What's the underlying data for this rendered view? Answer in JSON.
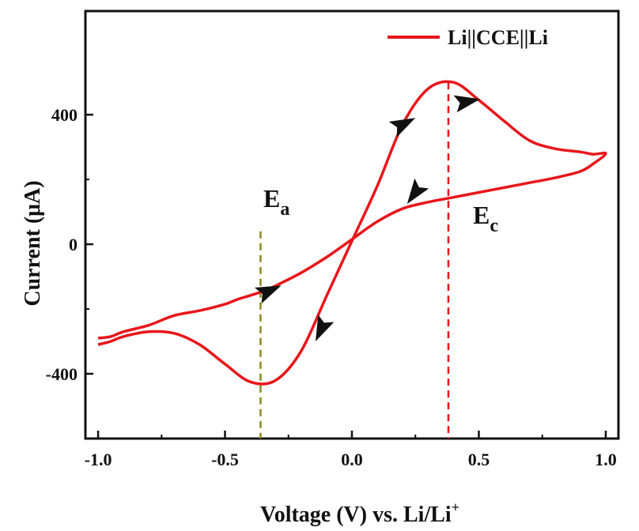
{
  "chart_data": {
    "type": "line",
    "xlabel": "Voltage (V) vs. Li/Li",
    "xlabel_sup": "+",
    "ylabel": "Current (μA)",
    "xlim": [
      -1.05,
      1.05
    ],
    "ylim": [
      -600,
      720
    ],
    "x_ticks": [
      -1.0,
      -0.5,
      0.0,
      0.5,
      1.0
    ],
    "x_tick_labels": [
      "-1.0",
      "-0.5",
      "0.0",
      "0.5",
      "1.0"
    ],
    "y_ticks": [
      -400,
      0,
      400
    ],
    "y_tick_labels": [
      "-400",
      "0",
      "400"
    ],
    "grid": false,
    "legend_position": "top-right",
    "series": [
      {
        "name": "Li||CCE||Li",
        "color": "#e8161b",
        "x": [
          -1.0,
          -0.95,
          -0.9,
          -0.8,
          -0.7,
          -0.6,
          -0.5,
          -0.45,
          -0.4,
          -0.35,
          -0.3,
          -0.2,
          -0.1,
          0.0,
          0.1,
          0.2,
          0.3,
          0.4,
          0.5,
          0.6,
          0.7,
          0.8,
          0.9,
          0.95,
          1.0,
          0.95,
          0.9,
          0.8,
          0.7,
          0.6,
          0.5,
          0.4,
          0.3,
          0.2,
          0.1,
          0.0,
          -0.1,
          -0.2,
          -0.3,
          -0.4,
          -0.5,
          -0.6,
          -0.7,
          -0.8,
          -0.9,
          -0.95,
          -1.0
        ],
        "y": [
          -290,
          -285,
          -270,
          -250,
          -220,
          -205,
          -185,
          -170,
          -158,
          -145,
          -128,
          -88,
          -40,
          15,
          70,
          110,
          130,
          145,
          160,
          175,
          190,
          205,
          225,
          248,
          280,
          278,
          285,
          295,
          320,
          380,
          445,
          500,
          480,
          370,
          180,
          10,
          -160,
          -330,
          -420,
          -425,
          -370,
          -310,
          -275,
          -270,
          -285,
          -300,
          -310
        ]
      }
    ],
    "arrows": [
      {
        "x": -0.33,
        "y": -145,
        "direction": "forward"
      },
      {
        "x": 0.2,
        "y": 370,
        "direction": "forward"
      },
      {
        "x": 0.45,
        "y": 440,
        "direction": "forward"
      },
      {
        "x": 0.25,
        "y": 160,
        "direction": "reverse"
      },
      {
        "x": -0.12,
        "y": -260,
        "direction": "reverse"
      }
    ],
    "vlines": [
      {
        "x": -0.36,
        "y_top": 40,
        "color": "#8a8a1e",
        "label": "E",
        "label_sub": "a"
      },
      {
        "x": 0.38,
        "y_top": 500,
        "color": "#e8161b",
        "label": "E",
        "label_sub": "c"
      }
    ]
  }
}
